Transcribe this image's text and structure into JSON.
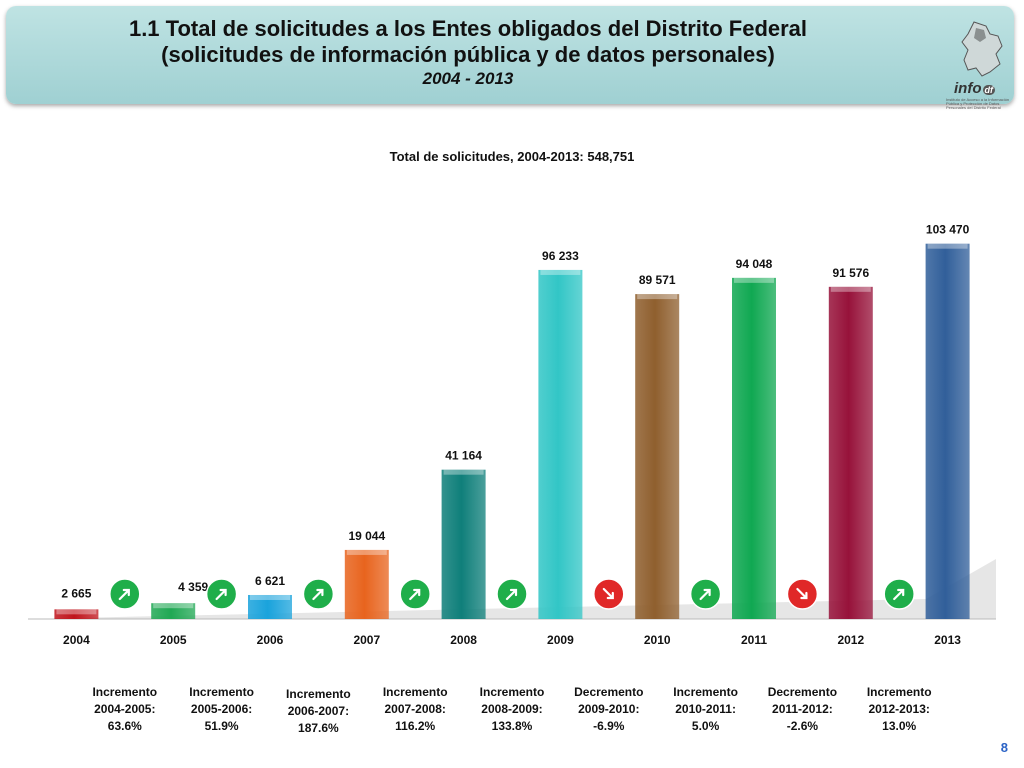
{
  "header": {
    "line1": "1.1 Total de solicitudes a los Entes obligados del Distrito Federal",
    "line2": "(solicitudes de información pública y de datos personales)",
    "line3": "2004 - 2013",
    "logo_text": "info",
    "logo_suffix": "df",
    "logo_caption": "Instituto de Acceso a la Información Pública y Protección de Datos Personales del Distrito Federal"
  },
  "chart_data": {
    "type": "bar",
    "title": "Total de solicitudes, 2004-2013: 548,751",
    "categories": [
      "2004",
      "2005",
      "2006",
      "2007",
      "2008",
      "2009",
      "2010",
      "2011",
      "2012",
      "2013"
    ],
    "values": [
      2665,
      4359,
      6621,
      19044,
      41164,
      96233,
      89571,
      94048,
      91576,
      103470
    ],
    "value_labels": [
      "2 665",
      "4 359",
      "6 621",
      "19 044",
      "41 164",
      "96 233",
      "89 571",
      "94 048",
      "91 576",
      "103 470"
    ],
    "colors": [
      "#c0141c",
      "#20a854",
      "#1aa3dc",
      "#e8641e",
      "#0f7f7a",
      "#32c6c6",
      "#8f5f2e",
      "#10a852",
      "#97123a",
      "#315f9a"
    ],
    "ylim": [
      0,
      110000
    ],
    "grid": false,
    "legend": "none",
    "changes": [
      {
        "kind": "up",
        "label": "Incremento",
        "period": "2004-2005:",
        "pct": "63.6%"
      },
      {
        "kind": "up",
        "label": "Incremento",
        "period": "2005-2006:",
        "pct": "51.9%"
      },
      {
        "kind": "up",
        "label": "Incremento",
        "period": "2006-2007:",
        "pct": "187.6%"
      },
      {
        "kind": "up",
        "label": "Incremento",
        "period": "2007-2008:",
        "pct": "116.2%"
      },
      {
        "kind": "up",
        "label": "Incremento",
        "period": "2008-2009:",
        "pct": "133.8%"
      },
      {
        "kind": "down",
        "label": "Decremento",
        "period": "2009-2010:",
        "pct": "-6.9%"
      },
      {
        "kind": "up",
        "label": "Incremento",
        "period": "2010-2011:",
        "pct": "5.0%"
      },
      {
        "kind": "down",
        "label": "Decremento",
        "period": "2011-2012:",
        "pct": "-2.6%"
      },
      {
        "kind": "up",
        "label": "Incremento",
        "period": "2012-2013:",
        "pct": "13.0%"
      }
    ],
    "arrow_colors": {
      "up": "#1fae4a",
      "down": "#e02828"
    }
  },
  "page_number": "8"
}
